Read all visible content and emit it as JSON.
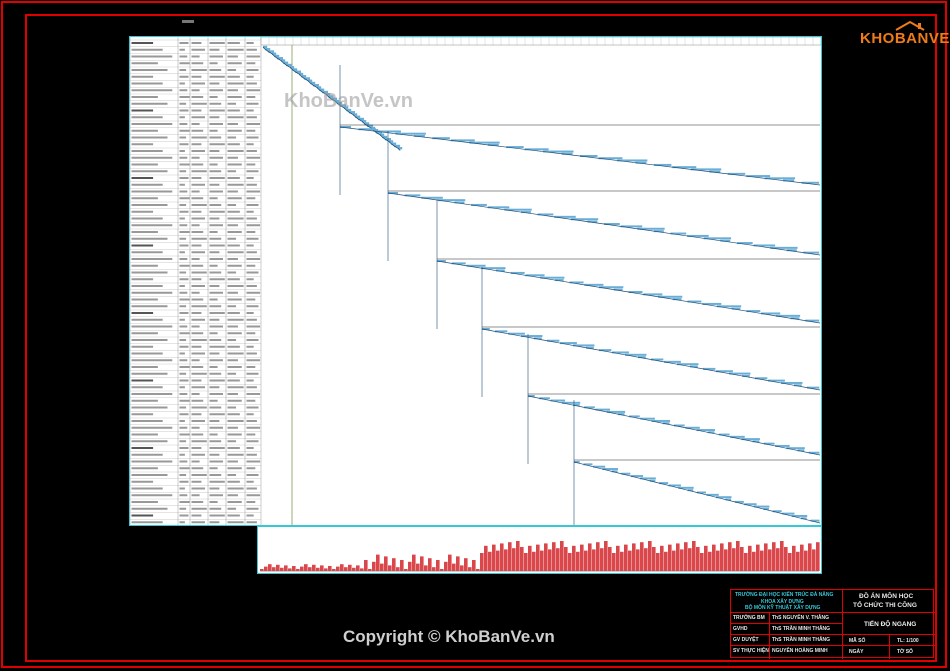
{
  "watermark": "KhoBanVe.vn",
  "logo": {
    "text": "KHOBANVE",
    "icon": "house-logo-icon"
  },
  "copyright": "Copyright © KhoBanVe.vn",
  "title_block": {
    "school_line1": "TRƯỜNG ĐẠI HỌC KIẾN TRÚC ĐÀ NẴNG",
    "school_line2": "KHOA XÂY DỰNG",
    "school_line3": "BỘ MÔN KỸ THUẬT XÂY DỰNG",
    "project_title": "ĐỒ ÁN MÔN HỌC",
    "project_subject": "TỔ CHỨC THI CÔNG",
    "drawing_name": "TIẾN ĐỘ NGANG",
    "rows": [
      {
        "role": "TRƯỞNG BM",
        "name": "ThS NGUYỄN V. THẮNG"
      },
      {
        "role": "GVHD",
        "name": "ThS TRẦN MINH THẮNG"
      },
      {
        "role": "GV DUYỆT",
        "name": "ThS TRẦN MINH THẮNG"
      },
      {
        "role": "SV THỰC HIỆN",
        "name": "NGUYỄN HOÀNG MINH"
      }
    ],
    "cell_labels": [
      "MÃ SỐ",
      "TL: 1/100",
      "NGÀY",
      "TỜ SỐ"
    ]
  },
  "colors": {
    "frame": "#e00000",
    "sheet_border": "#37c8d8",
    "gantt_bar": "#6aaed6",
    "gantt_line": "#1f4e79",
    "histogram": "#d9474b"
  }
}
